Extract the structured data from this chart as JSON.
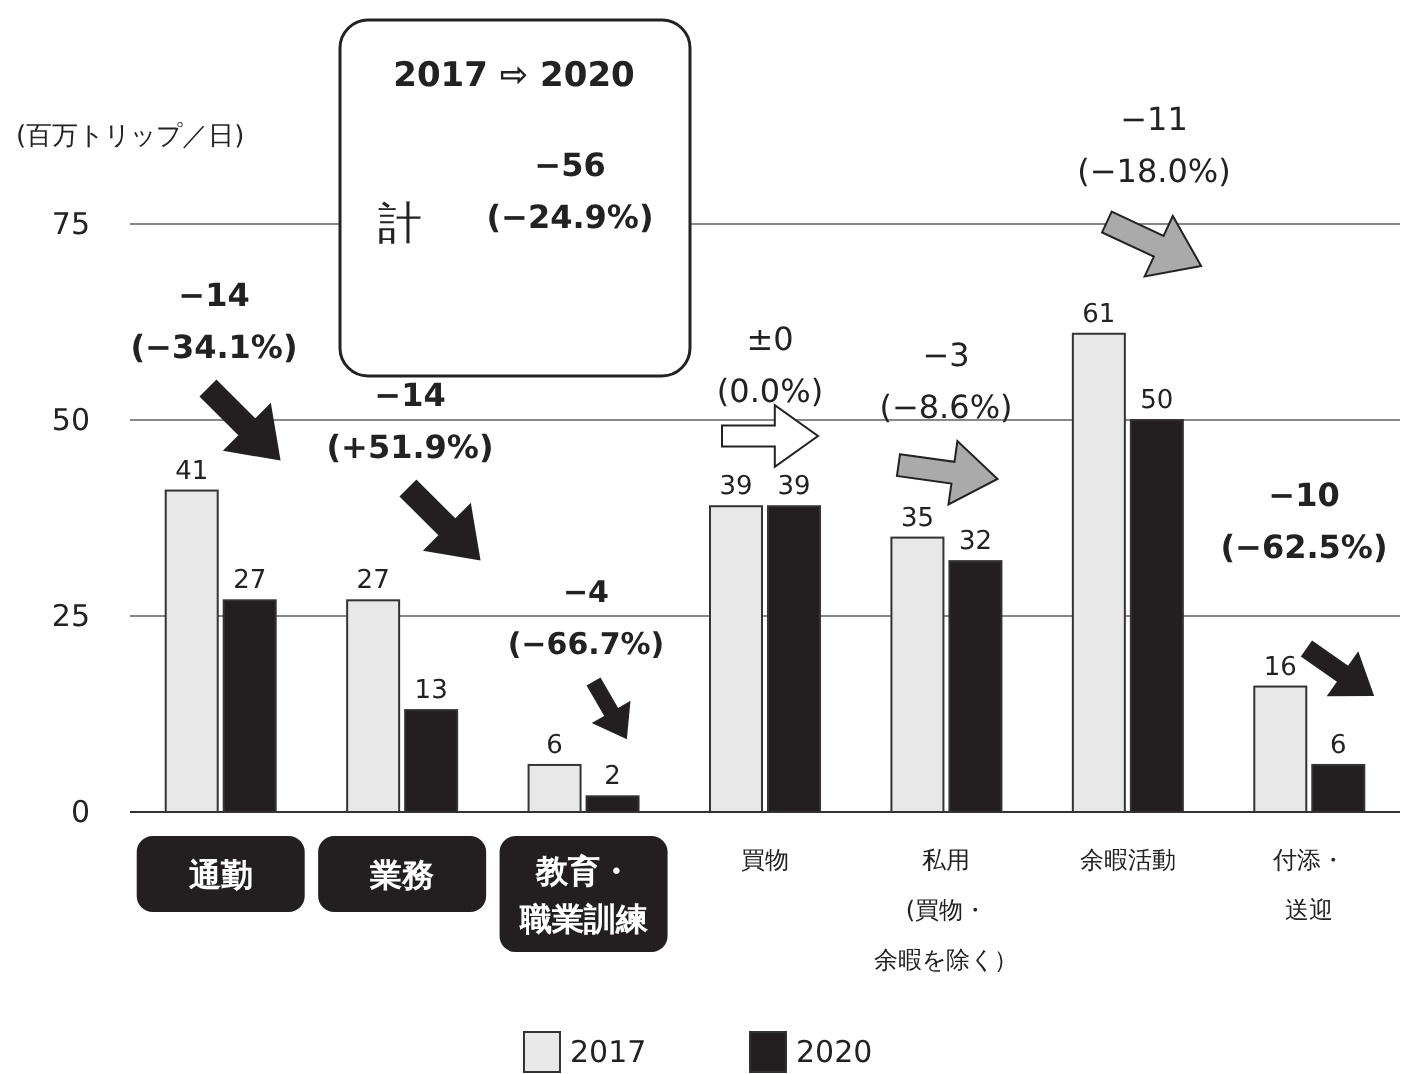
{
  "chart_data": {
    "type": "bar",
    "ylabel": "(百万トリップ／日)",
    "categories": [
      "通勤",
      "業務",
      "教育・職業訓練",
      "買物",
      "私用(買物・余暇を除く）",
      "余暇活動",
      "付添・送迎"
    ],
    "series": [
      {
        "name": "2017",
        "color": "#e8e8e8",
        "values": [
          41,
          27,
          6,
          39,
          35,
          61,
          16
        ]
      },
      {
        "name": "2020",
        "color": "#231f20",
        "values": [
          27,
          13,
          2,
          39,
          32,
          50,
          6
        ]
      }
    ],
    "ylim": [
      0,
      75
    ],
    "yticks": [
      0,
      25,
      50,
      75
    ],
    "grid": "y",
    "legend": "bottom",
    "data_labels": true,
    "annotations": [
      "2017 ⇨ 2020",
      "計",
      "−56\n(−24.9%)",
      "−14\n(−34.1%)",
      "−14\n(+51.9%)",
      "−4\n(−66.7%)",
      "±0\n(0.0%)",
      "−3\n(−8.6%)",
      "−11\n(−18.0%)",
      "−10\n(−62.5%)"
    ]
  }
}
